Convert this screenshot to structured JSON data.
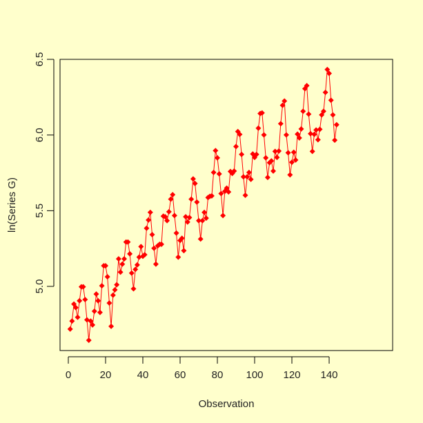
{
  "chart_data": {
    "type": "line",
    "title": "",
    "xlabel": "Observation",
    "ylabel": "ln(Series G)",
    "xlim": [
      -4,
      150
    ],
    "ylim": [
      4.6,
      6.5
    ],
    "x_ticks": [
      "0",
      "20",
      "40",
      "60",
      "80",
      "100",
      "120",
      "140"
    ],
    "y_ticks": [
      "5.0",
      "5.5",
      "6.0",
      "6.5"
    ],
    "grid": false,
    "legend": null,
    "series_color": "#FF0000",
    "marker": "diamond",
    "series": [
      {
        "name": "ln(Series G)",
        "x": [
          1,
          2,
          3,
          4,
          5,
          6,
          7,
          8,
          9,
          10,
          11,
          12,
          13,
          14,
          15,
          16,
          17,
          18,
          19,
          20,
          21,
          22,
          23,
          24,
          25,
          26,
          27,
          28,
          29,
          30,
          31,
          32,
          33,
          34,
          35,
          36,
          37,
          38,
          39,
          40,
          41,
          42,
          43,
          44,
          45,
          46,
          47,
          48,
          49,
          50,
          51,
          52,
          53,
          54,
          55,
          56,
          57,
          58,
          59,
          60,
          61,
          62,
          63,
          64,
          65,
          66,
          67,
          68,
          69,
          70,
          71,
          72,
          73,
          74,
          75,
          76,
          77,
          78,
          79,
          80,
          81,
          82,
          83,
          84,
          85,
          86,
          87,
          88,
          89,
          90,
          91,
          92,
          93,
          94,
          95,
          96,
          97,
          98,
          99,
          100,
          101,
          102,
          103,
          104,
          105,
          106,
          107,
          108,
          109,
          110,
          111,
          112,
          113,
          114,
          115,
          116,
          117,
          118,
          119,
          120,
          121,
          122,
          123,
          124,
          125,
          126,
          127,
          128,
          129,
          130,
          131,
          132,
          133,
          134,
          135,
          136,
          137,
          138,
          139,
          140,
          141,
          142,
          143,
          144
        ],
        "values": [
          4.718,
          4.771,
          4.883,
          4.86,
          4.796,
          4.905,
          4.997,
          4.997,
          4.913,
          4.779,
          4.644,
          4.771,
          4.745,
          4.836,
          4.949,
          4.905,
          4.828,
          5.004,
          5.136,
          5.136,
          5.063,
          4.89,
          4.736,
          4.942,
          4.977,
          5.011,
          5.182,
          5.094,
          5.147,
          5.182,
          5.293,
          5.293,
          5.215,
          5.088,
          4.984,
          5.112,
          5.142,
          5.193,
          5.263,
          5.199,
          5.209,
          5.384,
          5.438,
          5.489,
          5.342,
          5.252,
          5.147,
          5.268,
          5.278,
          5.278,
          5.464,
          5.46,
          5.434,
          5.493,
          5.576,
          5.606,
          5.468,
          5.352,
          5.193,
          5.303,
          5.318,
          5.236,
          5.46,
          5.425,
          5.455,
          5.576,
          5.71,
          5.68,
          5.557,
          5.434,
          5.313,
          5.434,
          5.489,
          5.451,
          5.587,
          5.595,
          5.598,
          5.753,
          5.897,
          5.849,
          5.743,
          5.613,
          5.468,
          5.628,
          5.649,
          5.624,
          5.759,
          5.746,
          5.762,
          5.924,
          6.023,
          6.004,
          5.872,
          5.724,
          5.602,
          5.724,
          5.753,
          5.707,
          5.875,
          5.852,
          5.872,
          6.045,
          6.142,
          6.146,
          6.001,
          5.849,
          5.72,
          5.817,
          5.829,
          5.762,
          5.892,
          5.852,
          5.894,
          6.075,
          6.196,
          6.225,
          6.001,
          5.883,
          5.737,
          5.82,
          5.886,
          5.835,
          6.006,
          5.981,
          6.04,
          6.157,
          6.306,
          6.326,
          6.138,
          6.009,
          5.892,
          6.004,
          6.033,
          5.969,
          6.038,
          6.133,
          6.157,
          6.282,
          6.433,
          6.407,
          6.23,
          6.133,
          5.966,
          6.068
        ]
      }
    ]
  }
}
